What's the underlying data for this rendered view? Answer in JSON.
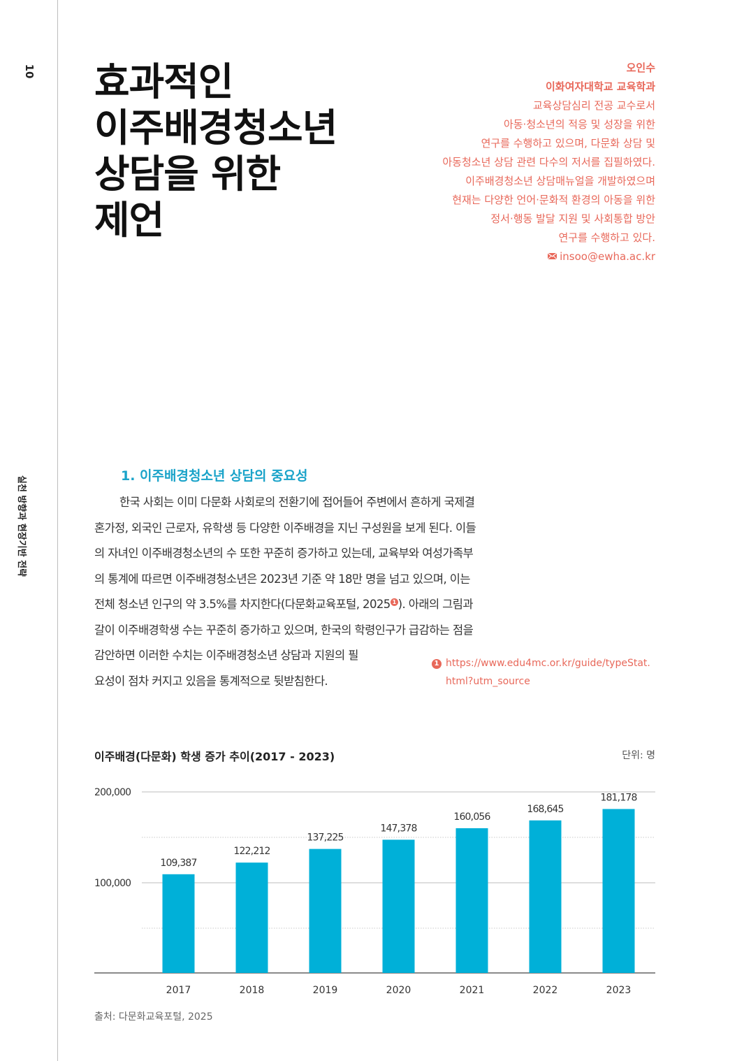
{
  "page": {
    "number": "10",
    "side_label": "실천 방향과 현장기반 전략"
  },
  "title": {
    "lines": [
      "효과적인",
      "이주배경청소년",
      "상담을 위한",
      "제언"
    ]
  },
  "author": {
    "name": "오인수",
    "affiliation": "이화여자대학교 교육학과",
    "bio_lines": [
      "교육상담심리 전공 교수로서",
      "아동·청소년의 적응 및 성장을 위한",
      "연구를 수행하고 있으며, 다문화 상담 및",
      "아동청소년 상담 관련 다수의 저서를 집필하였다.",
      "이주배경청소년 상담매뉴얼을 개발하였으며",
      "현재는 다양한 언어·문화적 환경의 아동을 위한",
      "정서·행동 발달 지원 및 사회통합 방안",
      "연구를 수행하고 있다."
    ],
    "email": "insoo@ewha.ac.kr",
    "email_icon": "mail-icon"
  },
  "section": {
    "heading": "1. 이주배경청소년 상담의 중요성",
    "body_lines": [
      "한국 사회는 이미 다문화 사회로의 전환기에 접어들어 주변에서 흔하게 국제결",
      "혼가정, 외국인 근로자, 유학생 등 다양한 이주배경을 지닌 구성원을 보게 된다. 이들",
      "의 자녀인 이주배경청소년의 수 또한 꾸준히 증가하고 있는데, 교육부와 여성가족부",
      "의 통계에 따르면 이주배경청소년은 2023년 기준 약 18만 명을 넘고 있으며, 이는",
      "전체 청소년 인구의 약 3.5%를 차지한다(다문화교육포털, 2025",
      "갈이 이주배경학생 수는 꾸준히 증가하고 있으며, 한국의 학령인구가 급감하는 점을",
      "감안하면 이러한 수치는 이주배경청소년 상담과 지원의 필",
      "요성이 점차 커지고 있음을 통계적으로 뒷받침한다."
    ],
    "line5_tail": "). 아래의 그림과",
    "footnote_ref": "1"
  },
  "footnote": {
    "marker": "1",
    "line1": "https://www.edu4mc.or.kr/guide/typeStat.",
    "line2": "html?utm_source"
  },
  "chart_meta": {
    "title": "이주배경(다문화) 학생 증가 추이(2017 - 2023)",
    "unit": "단위: 명",
    "source": "출처: 다문화교육포털, 2025"
  },
  "chart_data": {
    "type": "bar",
    "title": "이주배경(다문화) 학생 증가 추이(2017 - 2023)",
    "categories": [
      "2017",
      "2018",
      "2019",
      "2020",
      "2021",
      "2022",
      "2023"
    ],
    "values": [
      109387,
      122212,
      137225,
      147378,
      160056,
      168645,
      181178
    ],
    "value_labels": [
      "109,387",
      "122,212",
      "137,225",
      "147,378",
      "160,056",
      "168,645",
      "181,178"
    ],
    "yticks": [
      100000,
      200000
    ],
    "ytick_labels": [
      "100,000",
      "200,000"
    ],
    "ylim": [
      0,
      200000
    ],
    "xlabel": "",
    "ylabel": "",
    "grid": true,
    "bar_color": "#00b0d8"
  }
}
